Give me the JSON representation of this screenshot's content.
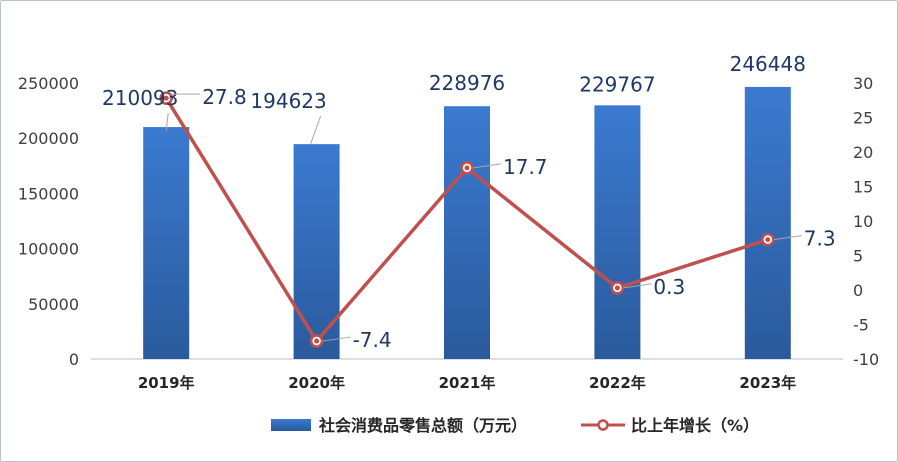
{
  "chart_data": {
    "type": "bar+line",
    "categories": [
      "2019年",
      "2020年",
      "2021年",
      "2022年",
      "2023年"
    ],
    "series": [
      {
        "name": "社会消费品零售总额（万元）",
        "type": "bar",
        "axis": "left",
        "color": "#3a70bd",
        "values": [
          210093,
          194623,
          228976,
          229767,
          246448
        ]
      },
      {
        "name": "比上年增长（%）",
        "type": "line",
        "axis": "right",
        "color": "#c0504d",
        "values": [
          27.8,
          -7.4,
          17.7,
          0.3,
          7.3
        ]
      }
    ],
    "y_left": {
      "ylim": [
        0,
        250000
      ],
      "ticks": [
        "0",
        "50000",
        "100000",
        "150000",
        "200000",
        "250000"
      ]
    },
    "y_right": {
      "ylim": [
        -10,
        30
      ],
      "ticks": [
        "-10",
        "-5",
        "0",
        "5",
        "10",
        "15",
        "20",
        "25",
        "30"
      ]
    },
    "bar_labels": [
      "210093",
      "194623",
      "228976",
      "229767",
      "246448"
    ],
    "line_labels": [
      "27.8",
      "-7.4",
      "17.7",
      "0.3",
      "7.3"
    ],
    "legend_position": "bottom",
    "grid": false
  }
}
